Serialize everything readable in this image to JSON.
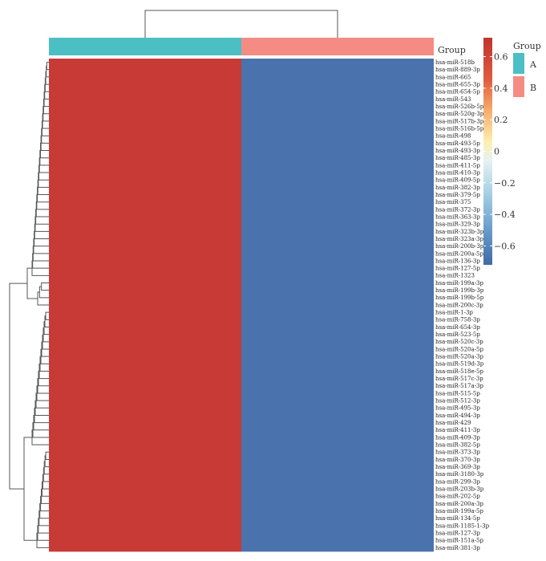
{
  "chart_data": {
    "type": "heatmap",
    "annotation_title": "Group",
    "columns": [
      "A",
      "B"
    ],
    "column_groups": [
      "A",
      "B"
    ],
    "rows": [
      "hsa-miR-518b",
      "hsa-miR-889-3p",
      "hsa-miR-665",
      "hsa-miR-655-3p",
      "hsa-miR-654-5p",
      "hsa-miR-543",
      "hsa-miR-526b-5p",
      "hsa-miR-520g-3p",
      "hsa-miR-517b-3p",
      "hsa-miR-516b-5p",
      "hsa-miR-498",
      "hsa-miR-493-5p",
      "hsa-miR-493-3p",
      "hsa-miR-485-3p",
      "hsa-miR-411-5p",
      "hsa-miR-410-3p",
      "hsa-miR-409-5p",
      "hsa-miR-382-3p",
      "hsa-miR-379-5p",
      "hsa-miR-375",
      "hsa-miR-372-3p",
      "hsa-miR-363-3p",
      "hsa-miR-329-3p",
      "hsa-miR-323b-3p",
      "hsa-miR-323a-3p",
      "hsa-miR-200b-3p",
      "hsa-miR-200a-5p",
      "hsa-miR-136-3p",
      "hsa-miR-127-5p",
      "hsa-miR-1323",
      "hsa-miR-199a-3p",
      "hsa-miR-199b-3p",
      "hsa-miR-199b-5p",
      "hsa-miR-200c-3p",
      "hsa-miR-1-3p",
      "hsa-miR-758-3p",
      "hsa-miR-654-3p",
      "hsa-miR-523-5p",
      "hsa-miR-520c-3p",
      "hsa-miR-520a-5p",
      "hsa-miR-520a-3p",
      "hsa-miR-519d-3p",
      "hsa-miR-518e-5p",
      "hsa-miR-517c-3p",
      "hsa-miR-517a-3p",
      "hsa-miR-515-5p",
      "hsa-miR-512-3p",
      "hsa-miR-495-3p",
      "hsa-miR-494-3p",
      "hsa-miR-429",
      "hsa-miR-411-3p",
      "hsa-miR-409-3p",
      "hsa-miR-382-5p",
      "hsa-miR-373-3p",
      "hsa-miR-370-3p",
      "hsa-miR-369-3p",
      "hsa-miR-3180-3p",
      "hsa-miR-299-3p",
      "hsa-miR-203b-3p",
      "hsa-miR-202-5p",
      "hsa-miR-200a-3p",
      "hsa-miR-199a-5p",
      "hsa-miR-134-5p",
      "hsa-miR-1185-1-3p",
      "hsa-miR-127-3p",
      "hsa-miR-151a-5p",
      "hsa-miR-381-3p"
    ],
    "value_A": 0.7071,
    "value_B": -0.7071,
    "colorbar": {
      "ticks": [
        0.6,
        0.4,
        0.2,
        0,
        -0.2,
        -0.4,
        -0.6
      ],
      "tick_labels": [
        "0.6",
        "0.4",
        "0.2",
        "0",
        "−0.2",
        "−0.4",
        "−0.6"
      ],
      "range": [
        -0.72,
        0.72
      ]
    },
    "legend": {
      "title": "Group",
      "entries": [
        {
          "label": "A",
          "color": "#4bbfc4"
        },
        {
          "label": "B",
          "color": "#f48c84"
        }
      ]
    }
  },
  "colors": {
    "high": "#c83a35",
    "low": "#4a72ad",
    "group_A": "#4bbfc4",
    "group_B": "#f48c84",
    "tree": "#555555"
  }
}
